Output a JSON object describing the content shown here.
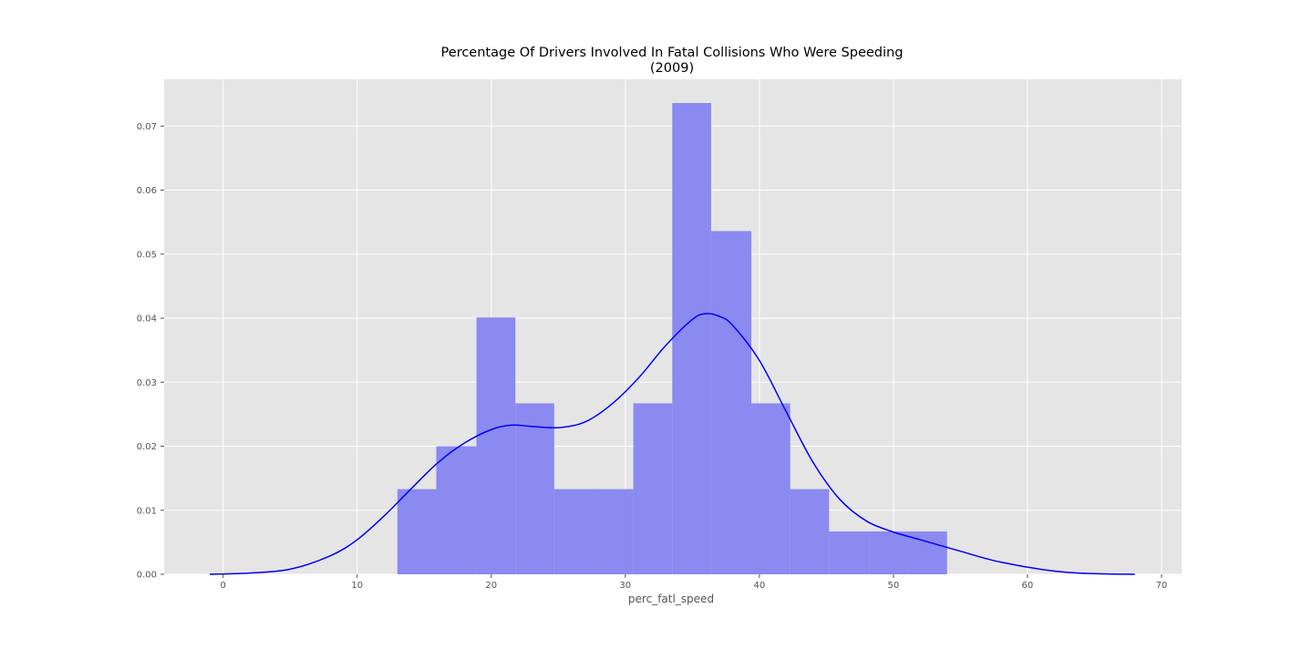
{
  "chart_data": {
    "type": "bar",
    "title_line1": "Percentage Of Drivers Involved In Fatal Collisions Who Were Speeding",
    "title_line2": "(2009)",
    "xlabel": "perc_fatl_speed",
    "ylabel": "",
    "xlim": [
      -4.4,
      71.5
    ],
    "ylim": [
      0,
      0.0773
    ],
    "xticks": [
      0,
      10,
      20,
      30,
      40,
      50,
      60,
      70
    ],
    "yticks": [
      0.0,
      0.01,
      0.02,
      0.03,
      0.04,
      0.05,
      0.06,
      0.07
    ],
    "grid": true,
    "colors": {
      "background": "#e5e5e5",
      "grid": "#ffffff",
      "bars": "#8a8af0",
      "kde": "#0000ff",
      "tick_text": "#555555"
    },
    "bins": [
      {
        "x0": 13.0,
        "x1": 15.9,
        "density": 0.0133
      },
      {
        "x0": 15.9,
        "x1": 18.9,
        "density": 0.02
      },
      {
        "x0": 18.9,
        "x1": 21.8,
        "density": 0.0401
      },
      {
        "x0": 21.8,
        "x1": 24.7,
        "density": 0.0267
      },
      {
        "x0": 24.7,
        "x1": 27.7,
        "density": 0.0133
      },
      {
        "x0": 27.7,
        "x1": 30.6,
        "density": 0.0133
      },
      {
        "x0": 30.6,
        "x1": 33.5,
        "density": 0.0267
      },
      {
        "x0": 33.5,
        "x1": 36.4,
        "density": 0.0736
      },
      {
        "x0": 36.4,
        "x1": 39.4,
        "density": 0.0536
      },
      {
        "x0": 39.4,
        "x1": 42.3,
        "density": 0.0267
      },
      {
        "x0": 42.3,
        "x1": 45.2,
        "density": 0.0133
      },
      {
        "x0": 45.2,
        "x1": 48.2,
        "density": 0.0067
      },
      {
        "x0": 48.2,
        "x1": 51.1,
        "density": 0.0067
      },
      {
        "x0": 51.1,
        "x1": 54.0,
        "density": 0.0067
      }
    ],
    "kde": {
      "x": [
        -1,
        2,
        5,
        8,
        10,
        12,
        14,
        16,
        18,
        20,
        21.5,
        23,
        25,
        27,
        29,
        31,
        33,
        35,
        36,
        37,
        38,
        40,
        42,
        44,
        46,
        48,
        50,
        52,
        55,
        58,
        62,
        65,
        68
      ],
      "y": [
        0.0,
        0.0002,
        0.0008,
        0.0029,
        0.0054,
        0.0091,
        0.0133,
        0.0174,
        0.0205,
        0.0226,
        0.0233,
        0.0231,
        0.0229,
        0.0238,
        0.0266,
        0.0307,
        0.0357,
        0.0398,
        0.0407,
        0.0403,
        0.0389,
        0.0334,
        0.0254,
        0.0175,
        0.0117,
        0.0083,
        0.0066,
        0.0054,
        0.0036,
        0.0019,
        0.0005,
        0.0001,
        0.0
      ]
    }
  }
}
